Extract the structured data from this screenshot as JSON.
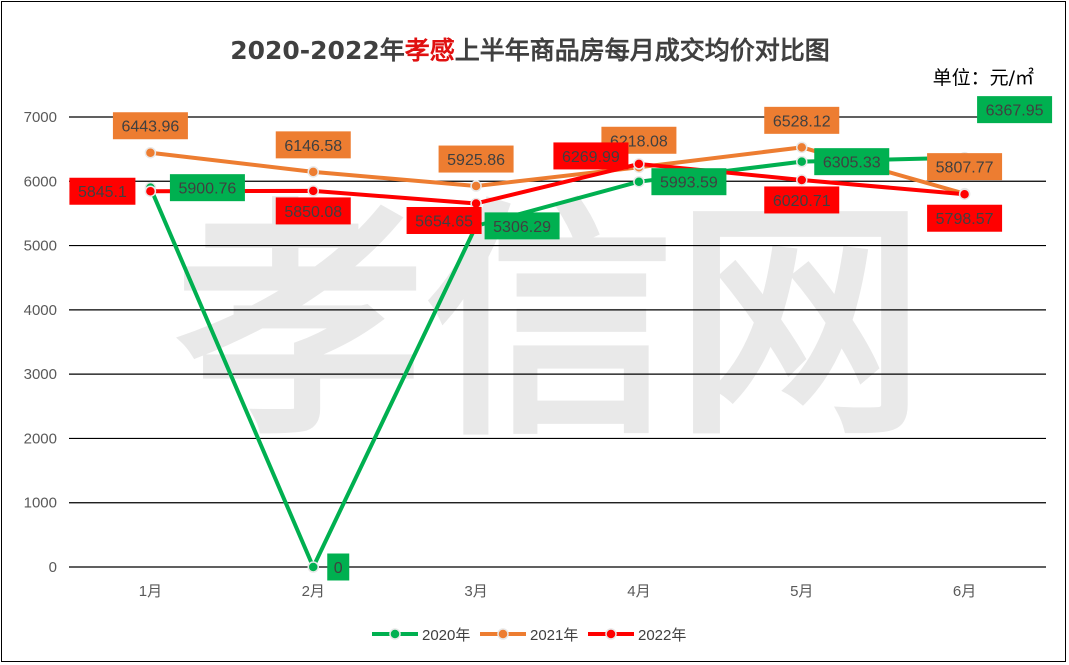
{
  "title": {
    "prefix": "2020-2022年",
    "highlight": "孝感",
    "suffix": "上半年商品房每月成交均价对比图"
  },
  "unit_label": "单位：元/㎡",
  "watermark": "孝信网",
  "colors": {
    "2020年": "#00b050",
    "2021年": "#ed7d31",
    "2022年": "#ff0000",
    "grid": "#000000",
    "title_highlight": "#e01010"
  },
  "chart_data": {
    "type": "line",
    "categories": [
      "1月",
      "2月",
      "3月",
      "4月",
      "5月",
      "6月"
    ],
    "ylim": [
      0,
      7000
    ],
    "yticks": [
      0,
      1000,
      2000,
      3000,
      4000,
      5000,
      6000,
      7000
    ],
    "grid": true,
    "legend_position": "bottom",
    "series": [
      {
        "name": "2020年",
        "values": [
          5900.76,
          0,
          5306.29,
          5993.59,
          6305.33,
          6367.95
        ],
        "labels": [
          "5900.76",
          "0",
          "5306.29",
          "5993.59",
          "6305.33",
          "6367.95"
        ]
      },
      {
        "name": "2021年",
        "values": [
          6443.96,
          6146.58,
          5925.86,
          6218.08,
          6528.12,
          5807.77
        ],
        "labels": [
          "6443.96",
          "6146.58",
          "5925.86",
          "6218.08",
          "6528.12",
          "5807.77"
        ]
      },
      {
        "name": "2022年",
        "values": [
          5845.1,
          5850.08,
          5654.65,
          6269.99,
          6020.71,
          5798.57
        ],
        "labels": [
          "5845.1",
          "5850.08",
          "5654.65",
          "6269.99",
          "6020.71",
          "5798.57"
        ]
      }
    ]
  }
}
